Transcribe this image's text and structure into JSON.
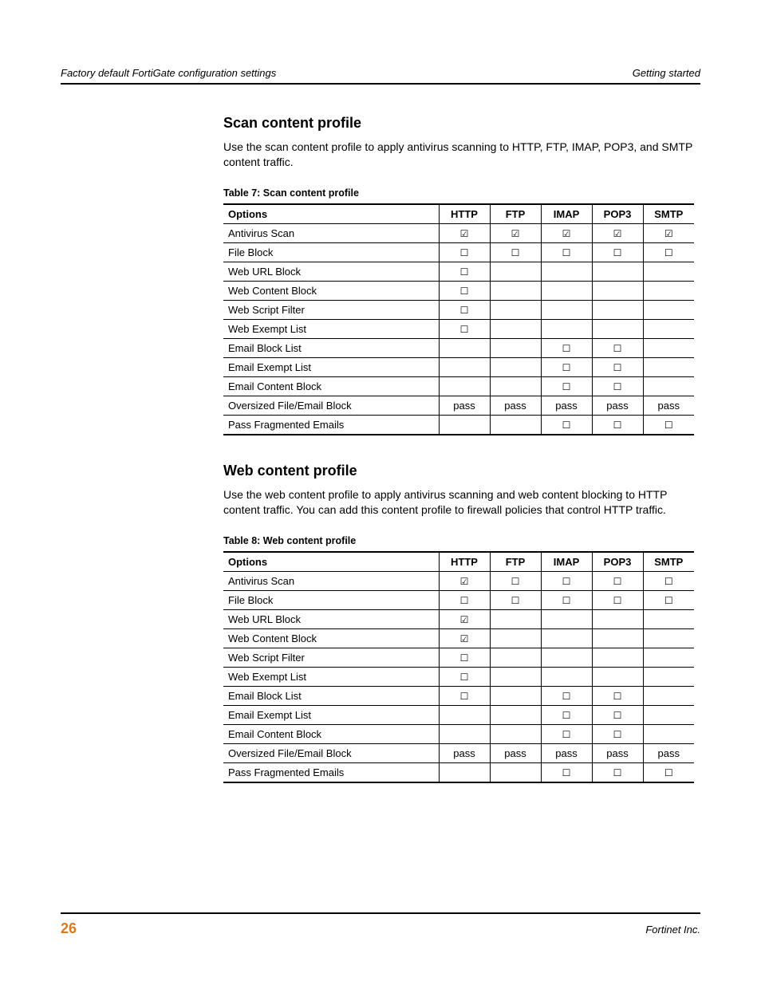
{
  "header": {
    "left": "Factory default FortiGate configuration settings",
    "right": "Getting started"
  },
  "footer": {
    "page_number": "26",
    "right": "Fortinet Inc."
  },
  "glyphs": {
    "checked": "☑",
    "unchecked": "☐"
  },
  "columns": [
    "Options",
    "HTTP",
    "FTP",
    "IMAP",
    "POP3",
    "SMTP"
  ],
  "section1": {
    "title": "Scan content profile",
    "body": "Use the scan content profile to apply antivirus scanning to HTTP, FTP, IMAP, POP3, and SMTP content traffic.",
    "caption": "Table 7: Scan content profile",
    "rows": [
      {
        "label": "Antivirus Scan",
        "cells": [
          "checked",
          "checked",
          "checked",
          "checked",
          "checked"
        ]
      },
      {
        "label": "File Block",
        "cells": [
          "unchecked",
          "unchecked",
          "unchecked",
          "unchecked",
          "unchecked"
        ]
      },
      {
        "label": "Web URL Block",
        "cells": [
          "unchecked",
          "",
          "",
          "",
          ""
        ]
      },
      {
        "label": "Web Content Block",
        "cells": [
          "unchecked",
          "",
          "",
          "",
          ""
        ]
      },
      {
        "label": "Web Script Filter",
        "cells": [
          "unchecked",
          "",
          "",
          "",
          ""
        ]
      },
      {
        "label": "Web Exempt List",
        "cells": [
          "unchecked",
          "",
          "",
          "",
          ""
        ]
      },
      {
        "label": "Email Block List",
        "cells": [
          "",
          "",
          "unchecked",
          "unchecked",
          ""
        ]
      },
      {
        "label": "Email Exempt List",
        "cells": [
          "",
          "",
          "unchecked",
          "unchecked",
          ""
        ]
      },
      {
        "label": "Email Content Block",
        "cells": [
          "",
          "",
          "unchecked",
          "unchecked",
          ""
        ]
      },
      {
        "label": "Oversized File/Email Block",
        "cells": [
          "pass",
          "pass",
          "pass",
          "pass",
          "pass"
        ]
      },
      {
        "label": "Pass Fragmented Emails",
        "cells": [
          "",
          "",
          "unchecked",
          "unchecked",
          "unchecked"
        ]
      }
    ]
  },
  "section2": {
    "title": "Web content profile",
    "body": "Use the web content profile to apply antivirus scanning and web content blocking to HTTP content traffic. You can add this content profile to firewall policies that control HTTP traffic.",
    "caption": "Table 8: Web content profile",
    "rows": [
      {
        "label": "Antivirus Scan",
        "cells": [
          "checked",
          "unchecked",
          "unchecked",
          "unchecked",
          "unchecked"
        ]
      },
      {
        "label": "File Block",
        "cells": [
          "unchecked",
          "unchecked",
          "unchecked",
          "unchecked",
          "unchecked"
        ]
      },
      {
        "label": "Web URL Block",
        "cells": [
          "checked",
          "",
          "",
          "",
          ""
        ]
      },
      {
        "label": "Web Content Block",
        "cells": [
          "checked",
          "",
          "",
          "",
          ""
        ]
      },
      {
        "label": "Web Script Filter",
        "cells": [
          "unchecked",
          "",
          "",
          "",
          ""
        ]
      },
      {
        "label": "Web Exempt List",
        "cells": [
          "unchecked",
          "",
          "",
          "",
          ""
        ]
      },
      {
        "label": "Email Block List",
        "cells": [
          "unchecked",
          "",
          "unchecked",
          "unchecked",
          ""
        ]
      },
      {
        "label": "Email Exempt List",
        "cells": [
          "",
          "",
          "unchecked",
          "unchecked",
          ""
        ]
      },
      {
        "label": "Email Content Block",
        "cells": [
          "",
          "",
          "unchecked",
          "unchecked",
          ""
        ]
      },
      {
        "label": "Oversized File/Email Block",
        "cells": [
          "pass",
          "pass",
          "pass",
          "pass",
          "pass"
        ]
      },
      {
        "label": "Pass Fragmented Emails",
        "cells": [
          "",
          "",
          "unchecked",
          "unchecked",
          "unchecked"
        ]
      }
    ]
  }
}
